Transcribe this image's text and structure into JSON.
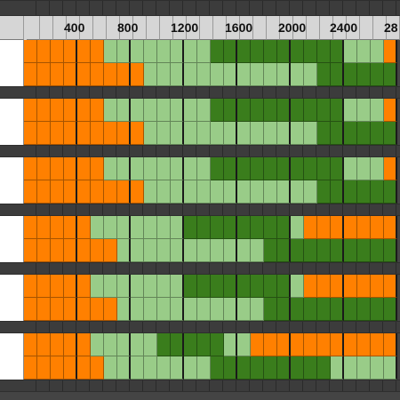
{
  "colors": {
    "orange": "#ff8000",
    "light": "#99cc88",
    "dark": "#3a7d1c",
    "band": "#3c3c3c",
    "header": "#d6d6d6",
    "label_bg": "#ffffff"
  },
  "axis": {
    "ticks": [
      "400",
      "800",
      "1200",
      "1600",
      "2000",
      "2400",
      "28"
    ]
  },
  "rows": [
    [
      "O",
      "O",
      "O",
      "O",
      "O",
      "O",
      "L",
      "L",
      "L",
      "L",
      "L",
      "L",
      "L",
      "L",
      "D",
      "D",
      "D",
      "D",
      "D",
      "D",
      "D",
      "D",
      "D",
      "D",
      "L",
      "L",
      "L",
      "O"
    ],
    [
      "O",
      "O",
      "O",
      "O",
      "O",
      "O",
      "O",
      "O",
      "O",
      "L",
      "L",
      "L",
      "L",
      "L",
      "L",
      "L",
      "L",
      "L",
      "L",
      "L",
      "L",
      "L",
      "D",
      "D",
      "D",
      "D",
      "D",
      "D"
    ],
    [
      "O",
      "O",
      "O",
      "O",
      "O",
      "O",
      "L",
      "L",
      "L",
      "L",
      "L",
      "L",
      "L",
      "L",
      "D",
      "D",
      "D",
      "D",
      "D",
      "D",
      "D",
      "D",
      "D",
      "D",
      "L",
      "L",
      "L",
      "O"
    ],
    [
      "O",
      "O",
      "O",
      "O",
      "O",
      "O",
      "O",
      "O",
      "O",
      "L",
      "L",
      "L",
      "L",
      "L",
      "L",
      "L",
      "L",
      "L",
      "L",
      "L",
      "L",
      "L",
      "D",
      "D",
      "D",
      "D",
      "D",
      "D"
    ],
    [
      "O",
      "O",
      "O",
      "O",
      "O",
      "O",
      "L",
      "L",
      "L",
      "L",
      "L",
      "L",
      "L",
      "L",
      "D",
      "D",
      "D",
      "D",
      "D",
      "D",
      "D",
      "D",
      "D",
      "D",
      "L",
      "L",
      "L",
      "O"
    ],
    [
      "O",
      "O",
      "O",
      "O",
      "O",
      "O",
      "O",
      "O",
      "O",
      "L",
      "L",
      "L",
      "L",
      "L",
      "L",
      "L",
      "L",
      "L",
      "L",
      "L",
      "L",
      "L",
      "D",
      "D",
      "D",
      "D",
      "D",
      "D"
    ],
    [
      "O",
      "O",
      "O",
      "O",
      "O",
      "L",
      "L",
      "L",
      "L",
      "L",
      "L",
      "L",
      "D",
      "D",
      "D",
      "D",
      "D",
      "D",
      "D",
      "D",
      "L",
      "O",
      "O",
      "O",
      "O",
      "O",
      "O",
      "O"
    ],
    [
      "O",
      "O",
      "O",
      "O",
      "O",
      "O",
      "O",
      "L",
      "L",
      "L",
      "L",
      "L",
      "L",
      "L",
      "L",
      "L",
      "L",
      "L",
      "D",
      "D",
      "D",
      "D",
      "D",
      "D",
      "D",
      "D",
      "D",
      "D"
    ],
    [
      "O",
      "O",
      "O",
      "O",
      "O",
      "L",
      "L",
      "L",
      "L",
      "L",
      "L",
      "L",
      "D",
      "D",
      "D",
      "D",
      "D",
      "D",
      "D",
      "D",
      "L",
      "O",
      "O",
      "O",
      "O",
      "O",
      "O",
      "O"
    ],
    [
      "O",
      "O",
      "O",
      "O",
      "O",
      "O",
      "O",
      "L",
      "L",
      "L",
      "L",
      "L",
      "L",
      "L",
      "L",
      "L",
      "L",
      "L",
      "D",
      "D",
      "D",
      "D",
      "D",
      "D",
      "D",
      "D",
      "D",
      "D"
    ],
    [
      "O",
      "O",
      "O",
      "O",
      "O",
      "L",
      "L",
      "L",
      "L",
      "L",
      "D",
      "D",
      "D",
      "D",
      "D",
      "L",
      "L",
      "O",
      "O",
      "O",
      "O",
      "O",
      "O",
      "O",
      "O",
      "O",
      "O",
      "O"
    ],
    [
      "O",
      "O",
      "O",
      "O",
      "O",
      "O",
      "L",
      "L",
      "L",
      "L",
      "L",
      "L",
      "L",
      "L",
      "D",
      "D",
      "D",
      "D",
      "D",
      "D",
      "D",
      "D",
      "D",
      "L",
      "L",
      "L",
      "L",
      "L"
    ]
  ]
}
